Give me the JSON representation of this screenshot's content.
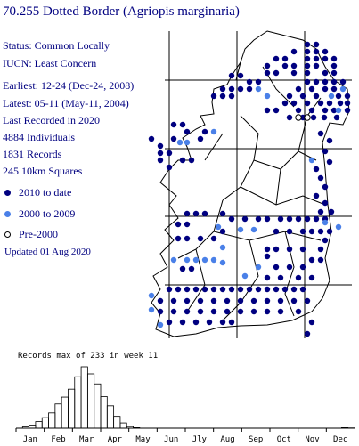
{
  "title": "70.255 Dotted Border (Agriopis marginaria)",
  "status": "Status: Common Locally",
  "iucn": "IUCN: Least Concern",
  "earliest": "Earliest:  12-24 (Dec-24, 2008)",
  "latest": "Latest:   05-11 (May-11, 2004)",
  "last_recorded": "Last Recorded in 2020",
  "individuals": "4884 Individuals",
  "records": "1831 Records",
  "squares": "245 10km Squares",
  "legend": [
    {
      "label": "2010 to date",
      "color": "#000080",
      "style": "filled"
    },
    {
      "label": "2000 to 2009",
      "color": "#4a80e8",
      "style": "filled"
    },
    {
      "label": "Pre-2000",
      "color": "#000000",
      "style": "open"
    }
  ],
  "updated": "Updated 01 Aug 2020",
  "colors": {
    "text": "#000080",
    "dot_recent": "#000080",
    "dot_mid": "#4a80e8",
    "dot_old": "#000000"
  },
  "chart_data": {
    "type": "bar",
    "title": "Records max of 233 in week 11",
    "x_tick_labels": [
      "Jan",
      "Feb",
      "Mar",
      "Apr",
      "May",
      "Jun",
      "Jly",
      "Aug",
      "Sep",
      "Oct",
      "Nov",
      "Dec"
    ],
    "ylim": [
      0,
      233
    ],
    "values": [
      0,
      5,
      12,
      25,
      40,
      58,
      92,
      118,
      148,
      195,
      233,
      206,
      168,
      120,
      85,
      45,
      20,
      6,
      2,
      0,
      0,
      0,
      0,
      0,
      0,
      0,
      0,
      0,
      0,
      0,
      0,
      0,
      0,
      0,
      0,
      0,
      0,
      0,
      0,
      0,
      0,
      0,
      0,
      0,
      0,
      0,
      0,
      0,
      0,
      0,
      2,
      1
    ]
  }
}
